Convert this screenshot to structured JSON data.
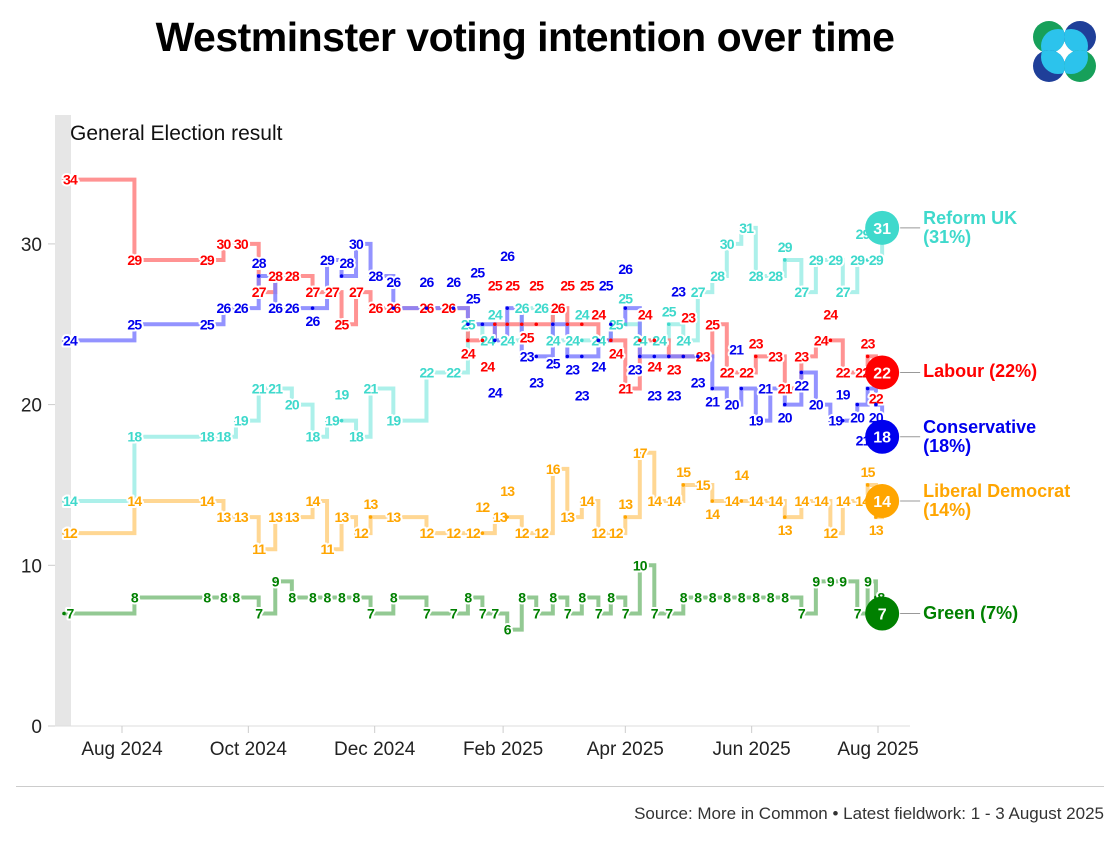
{
  "title": "Westminster voting intention over time",
  "source": "Source: More in Common • Latest fieldwork: 1 - 3 August 2025",
  "chart_data": {
    "type": "line",
    "step": true,
    "title": "Westminster voting intention over time",
    "annotation": "General Election result",
    "xlabel": "",
    "ylabel": "",
    "ylim": [
      0,
      35
    ],
    "yticks": [
      0,
      10,
      20,
      30
    ],
    "xticks": [
      {
        "date": "2024-08-01",
        "label": "Aug 2024"
      },
      {
        "date": "2024-10-01",
        "label": "Oct 2024"
      },
      {
        "date": "2024-12-01",
        "label": "Dec 2024"
      },
      {
        "date": "2025-02-01",
        "label": "Feb 2025"
      },
      {
        "date": "2025-04-01",
        "label": "Apr 2025"
      },
      {
        "date": "2025-06-01",
        "label": "Jun 2025"
      },
      {
        "date": "2025-08-01",
        "label": "Aug 2025"
      }
    ],
    "grid": false,
    "legend": "right, end-of-line labels",
    "dates": [
      "2024-07-04",
      "2024-08-07",
      "2024-09-11",
      "2024-09-19",
      "2024-09-25",
      "2024-10-06",
      "2024-10-14",
      "2024-10-22",
      "2024-11-01",
      "2024-11-08",
      "2024-11-15",
      "2024-11-22",
      "2024-11-29",
      "2024-12-10",
      "2024-12-26",
      "2025-01-08",
      "2025-01-15",
      "2025-01-22",
      "2025-01-28",
      "2025-02-03",
      "2025-02-10",
      "2025-02-17",
      "2025-02-25",
      "2025-03-04",
      "2025-03-11",
      "2025-03-19",
      "2025-03-25",
      "2025-04-01",
      "2025-04-08",
      "2025-04-15",
      "2025-04-22",
      "2025-04-29",
      "2025-05-06",
      "2025-05-13",
      "2025-05-20",
      "2025-05-27",
      "2025-06-03",
      "2025-06-10",
      "2025-06-17",
      "2025-06-25",
      "2025-07-02",
      "2025-07-09",
      "2025-07-15",
      "2025-07-22",
      "2025-07-27",
      "2025-07-31",
      "2025-08-03"
    ],
    "series": [
      {
        "name": "Reform UK",
        "end_label": "Reform UK (31%)",
        "color": "#3fd9cc",
        "line_color": "#9eede6",
        "values": [
          14,
          18,
          18,
          18,
          19,
          21,
          21,
          20,
          18,
          19,
          19,
          18,
          21,
          19,
          22,
          22,
          25,
          24,
          24,
          24,
          26,
          26,
          24,
          24,
          24,
          24,
          25,
          25,
          24,
          24,
          25,
          24,
          27,
          28,
          30,
          31,
          28,
          28,
          29,
          27,
          29,
          29,
          27,
          29,
          29,
          29,
          31
        ]
      },
      {
        "name": "Labour",
        "end_label": "Labour (22%)",
        "color": "#ff0000",
        "line_color": "#ff8080",
        "values": [
          34,
          29,
          29,
          30,
          30,
          27,
          28,
          28,
          27,
          27,
          25,
          27,
          26,
          26,
          26,
          26,
          24,
          24,
          25,
          25,
          25,
          25,
          26,
          25,
          25,
          24,
          24,
          21,
          24,
          24,
          23,
          23,
          23,
          25,
          22,
          22,
          23,
          23,
          21,
          23,
          24,
          24,
          22,
          22,
          23,
          22,
          22
        ]
      },
      {
        "name": "Conservative",
        "end_label": "Conservative (18%)",
        "color": "#0000ee",
        "line_color": "#8080ff",
        "values": [
          24,
          25,
          25,
          26,
          26,
          28,
          26,
          26,
          26,
          29,
          28,
          30,
          28,
          26,
          26,
          26,
          25,
          25,
          24,
          26,
          23,
          23,
          25,
          23,
          23,
          24,
          25,
          26,
          23,
          23,
          23,
          23,
          23,
          21,
          20,
          21,
          19,
          21,
          20,
          22,
          20,
          19,
          19,
          20,
          21,
          20,
          18
        ]
      },
      {
        "name": "Liberal Democrat",
        "end_label": "Liberal Democrat (14%)",
        "color": "#ffa500",
        "line_color": "#ffd080",
        "values": [
          12,
          14,
          14,
          13,
          13,
          11,
          13,
          13,
          14,
          11,
          13,
          12,
          13,
          13,
          12,
          12,
          12,
          12,
          13,
          13,
          12,
          12,
          16,
          13,
          14,
          12,
          12,
          13,
          17,
          14,
          14,
          15,
          15,
          14,
          14,
          14,
          14,
          14,
          13,
          14,
          14,
          12,
          14,
          14,
          15,
          13,
          14
        ]
      },
      {
        "name": "Green",
        "end_label": "Green (7%)",
        "color": "#008000",
        "line_color": "#80c080",
        "values": [
          7,
          8,
          8,
          8,
          8,
          7,
          9,
          8,
          8,
          8,
          8,
          8,
          7,
          8,
          7,
          7,
          8,
          7,
          7,
          6,
          8,
          7,
          8,
          7,
          8,
          7,
          8,
          7,
          10,
          7,
          7,
          8,
          8,
          8,
          8,
          8,
          8,
          8,
          8,
          7,
          9,
          9,
          9,
          7,
          9,
          8,
          7
        ]
      }
    ]
  },
  "logo": {
    "colors": [
      "#17a05a",
      "#1f3f99",
      "#2cc3ec"
    ]
  }
}
